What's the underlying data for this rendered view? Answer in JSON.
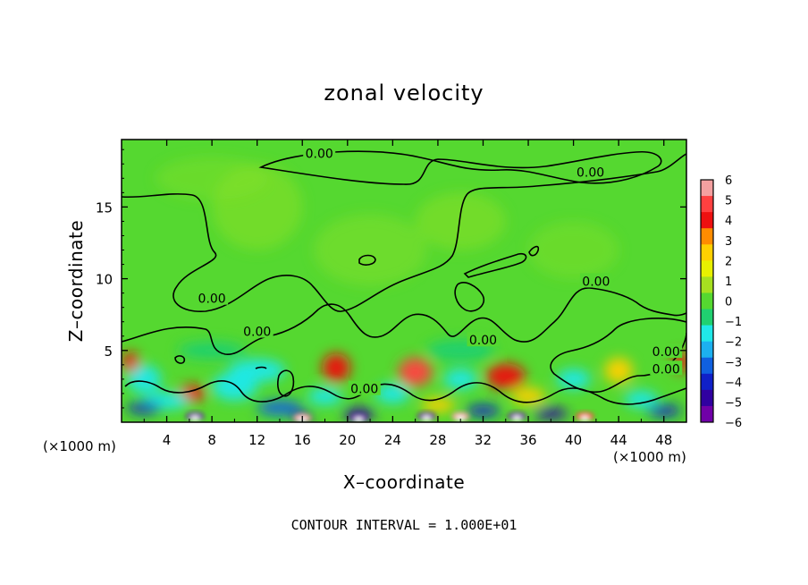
{
  "chart_data": {
    "type": "heatmap",
    "title": "zonal velocity",
    "xlabel": "X–coordinate",
    "ylabel": "Z–coordinate",
    "x_unit": "(×1000 m)",
    "x_unit_right": "(×1000 m)",
    "xlim": [
      0,
      50
    ],
    "ylim": [
      0,
      19.7
    ],
    "x_ticks": [
      4,
      8,
      12,
      16,
      20,
      24,
      28,
      32,
      36,
      40,
      44,
      48
    ],
    "y_ticks": [
      5,
      10,
      15
    ],
    "colorbar": {
      "ticks": [
        6,
        5,
        4,
        3,
        2,
        1,
        0,
        -1,
        -2,
        -3,
        -4,
        -5,
        -6
      ],
      "tick_labels": [
        "6",
        "5",
        "4",
        "3",
        "2",
        "1",
        "0",
        "−1",
        "−2",
        "−3",
        "−4",
        "−5",
        "−6"
      ],
      "colors": [
        "#f4a0a0",
        "#ff4040",
        "#ee1010",
        "#ff8c00",
        "#ffd000",
        "#e8f000",
        "#a6e020",
        "#55d830",
        "#20d070",
        "#20e8e8",
        "#1cb0f0",
        "#1060e0",
        "#1020c8",
        "#3000a0",
        "#7000a8"
      ]
    },
    "contour_labels": [
      "0.00",
      "0.00",
      "0.00",
      "0.00",
      "0.00",
      "0.00",
      "0.00",
      "0.00",
      "0.00"
    ],
    "footnote": "CONTOUR INTERVAL = 1.000E+01",
    "grid": false
  }
}
